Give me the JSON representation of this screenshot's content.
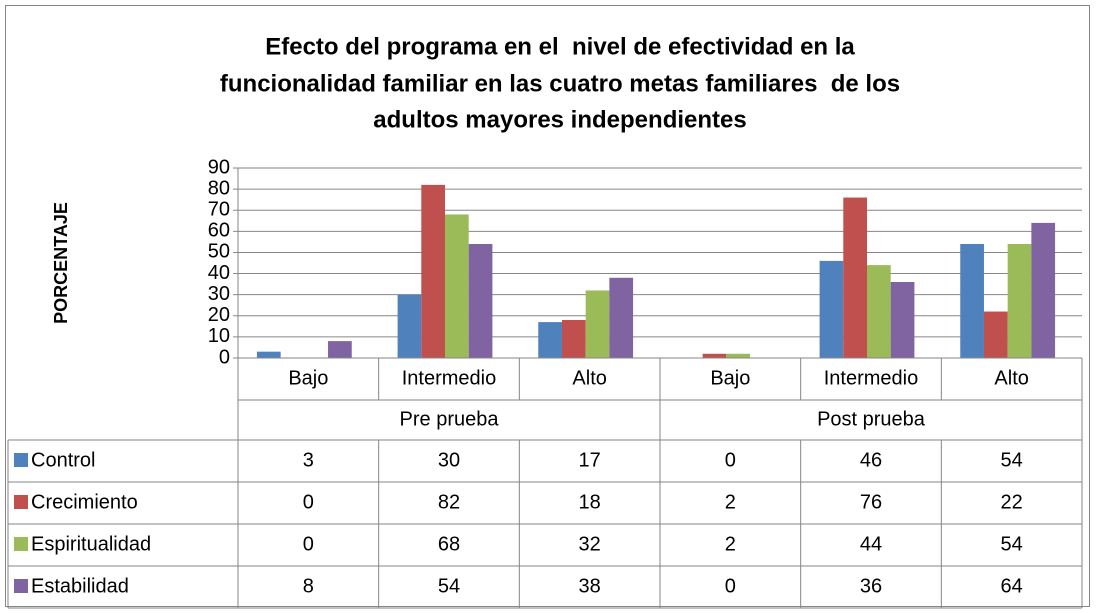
{
  "chart_data": {
    "type": "bar",
    "title": [
      "Efecto del programa en el  nivel de efectividad en la",
      "funcionalidad familiar en las cuatro metas familiares  de los",
      "adultos mayores independientes"
    ],
    "y_label": "PORCENTAJE",
    "categories": [
      "Bajo",
      "Intermedio",
      "Alto",
      "Bajo",
      "Intermedio",
      "Alto"
    ],
    "groups": [
      "Pre prueba",
      "Post prueba"
    ],
    "series": [
      {
        "name": "Control",
        "color": "#4f81bd",
        "values": [
          3,
          30,
          17,
          0,
          46,
          54
        ]
      },
      {
        "name": "Crecimiento",
        "color": "#c0504d",
        "values": [
          0,
          82,
          18,
          2,
          76,
          22
        ]
      },
      {
        "name": "Espiritualidad",
        "color": "#9bbb59",
        "values": [
          0,
          68,
          32,
          2,
          44,
          54
        ]
      },
      {
        "name": "Estabilidad",
        "color": "#8064a2",
        "values": [
          8,
          54,
          38,
          0,
          36,
          64
        ]
      }
    ],
    "ylim": [
      0,
      90
    ],
    "yticks": [
      0,
      10,
      20,
      30,
      40,
      50,
      60,
      70,
      80,
      90
    ],
    "grid": true
  }
}
